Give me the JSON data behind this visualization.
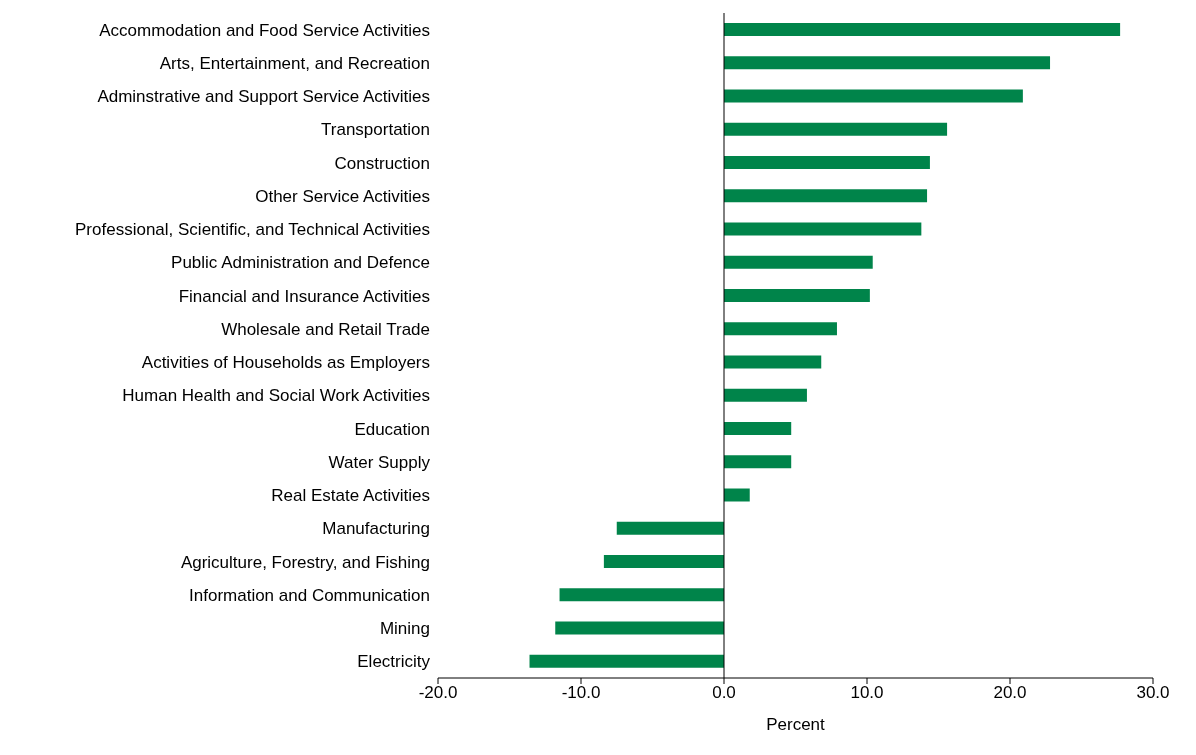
{
  "chart_data": {
    "type": "bar",
    "orientation": "horizontal",
    "xlabel": "Percent",
    "categories": [
      "Accommodation and Food Service Activities",
      "Arts, Entertainment, and Recreation",
      "Adminstrative and Support Service Activities",
      "Transportation",
      "Construction",
      "Other Service Activities",
      "Professional, Scientific, and Technical Activities",
      "Public Administration and Defence",
      "Financial and Insurance Activities",
      "Wholesale and Retail Trade",
      "Activities of Households as Employers",
      "Human Health and Social Work Activities",
      "Education",
      "Water Supply",
      "Real Estate Activities",
      "Manufacturing",
      "Agriculture, Forestry, and Fishing",
      "Information and Communication",
      "Mining",
      "Electricity"
    ],
    "values": [
      27.7,
      22.8,
      20.9,
      15.6,
      14.4,
      14.2,
      13.8,
      10.4,
      10.2,
      7.9,
      6.8,
      5.8,
      4.7,
      4.7,
      1.8,
      -7.5,
      -8.4,
      -11.5,
      -11.8,
      -13.6
    ],
    "color": "#00844a",
    "xlim": [
      -20,
      30
    ],
    "xticks": [
      {
        "value": -20,
        "label": "-20.0"
      },
      {
        "value": -10,
        "label": "-10.0"
      },
      {
        "value": 0,
        "label": "0.0"
      },
      {
        "value": 10,
        "label": "10.0"
      },
      {
        "value": 20,
        "label": "20.0"
      },
      {
        "value": 30,
        "label": "30.0"
      }
    ],
    "ref_lines": [
      {
        "axis": "x",
        "value": 0,
        "color": "#000000"
      }
    ],
    "grid": false,
    "legend": false
  }
}
